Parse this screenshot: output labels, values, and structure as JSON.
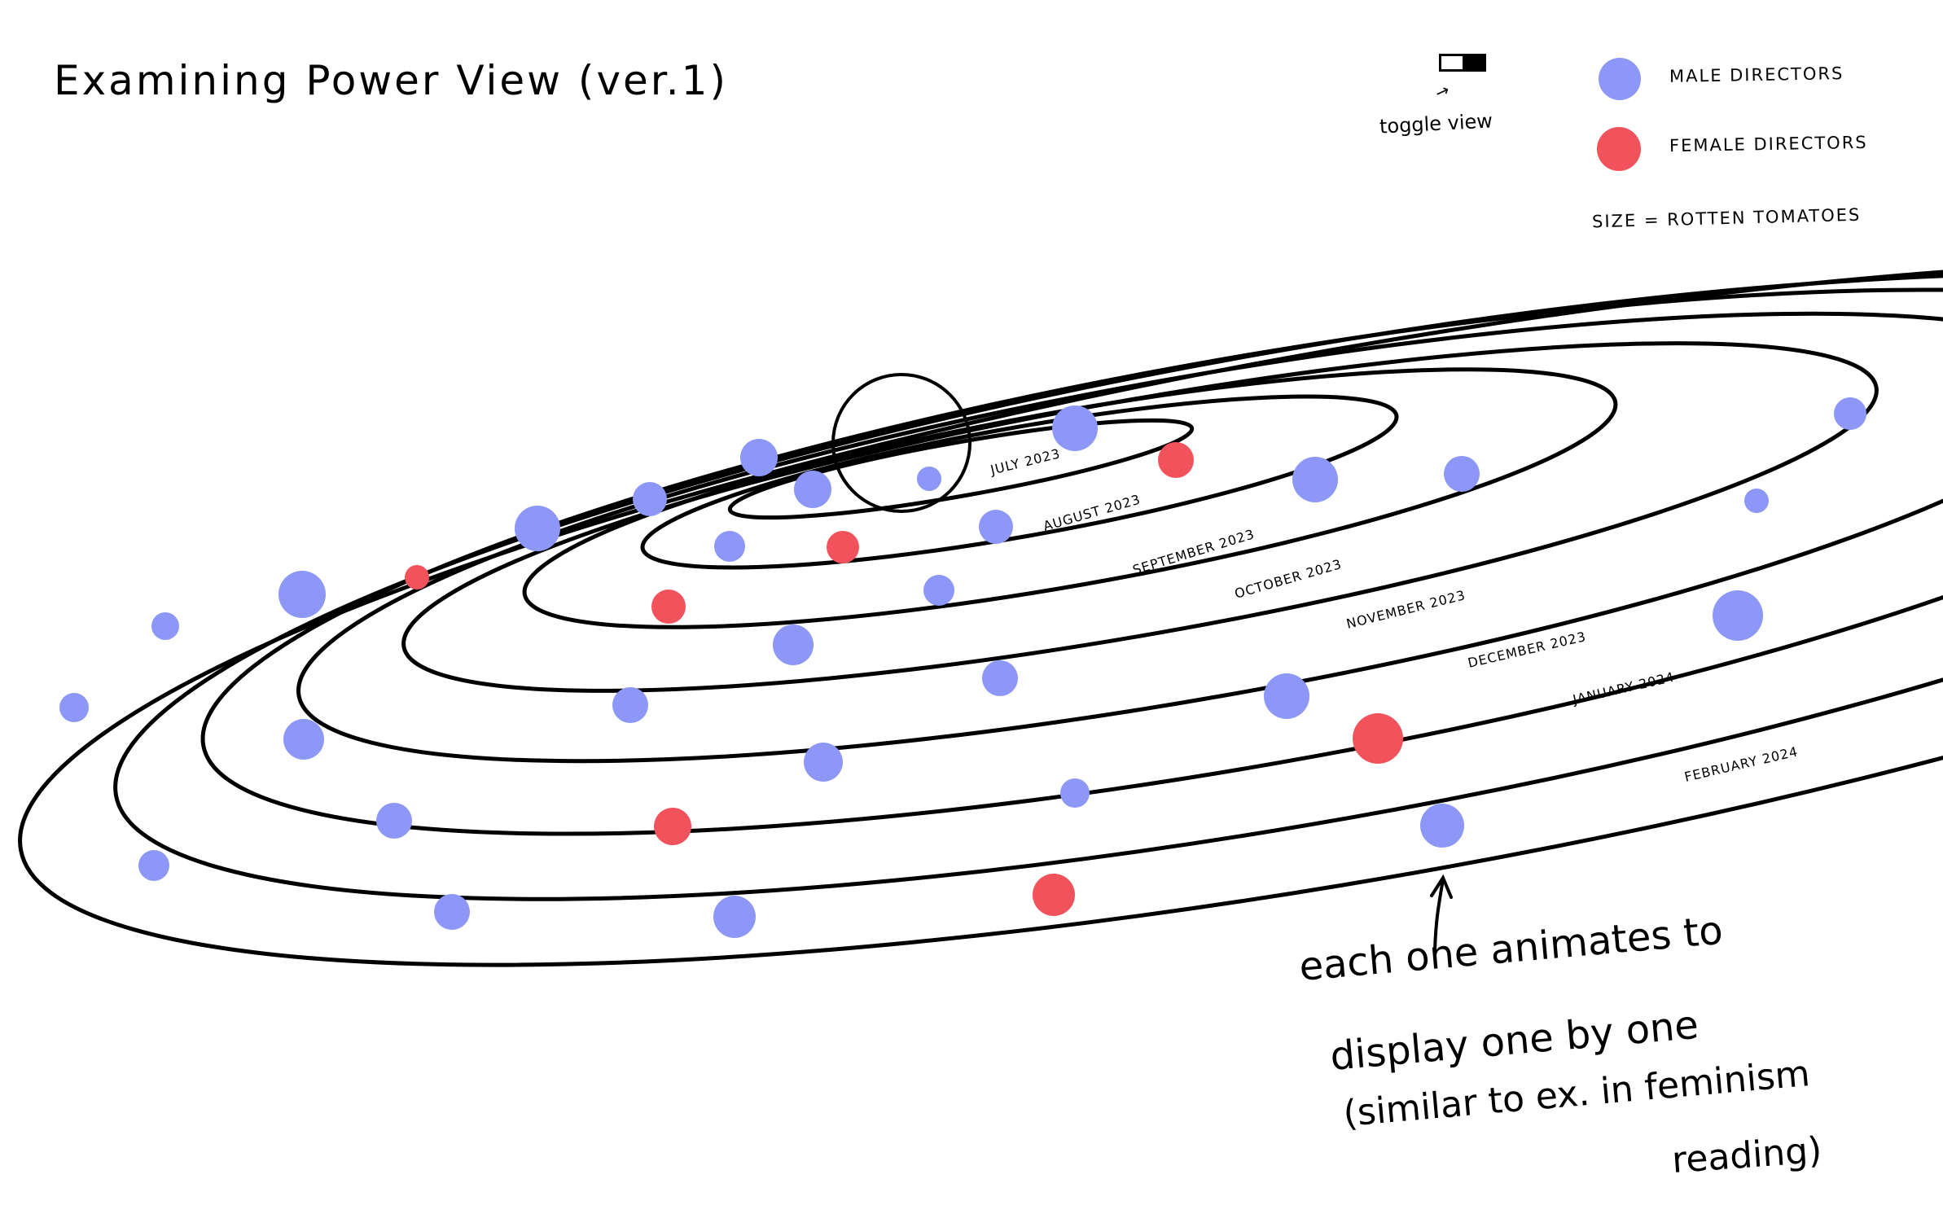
{
  "title": "Examining Power View (ver.1)",
  "toggle": {
    "label": "toggle view",
    "arrow": "↗"
  },
  "legend": {
    "items": [
      {
        "label": "MALE DIRECTORS",
        "color": "#8c97f7"
      },
      {
        "label": "FEMALE DIRECTORS",
        "color": "#f2525c"
      }
    ],
    "size_note": "SIZE = ROTTEN TOMATOES"
  },
  "orbits": [
    {
      "month": "JULY 2023"
    },
    {
      "month": "AUGUST 2023"
    },
    {
      "month": "SEPTEMBER 2023"
    },
    {
      "month": "OCTOBER 2023"
    },
    {
      "month": "NOVEMBER 2023"
    },
    {
      "month": "DECEMBER 2023"
    },
    {
      "month": "JANUARY 2024"
    },
    {
      "month": "FEBRUARY 2024"
    }
  ],
  "annotation": {
    "line1": "each one animates to",
    "line2": "display one by one",
    "line3": "(similar to ex. in feminism",
    "line4": "reading)"
  },
  "colors": {
    "male": "#8c97f7",
    "female": "#f2525c",
    "ink": "#000000"
  }
}
